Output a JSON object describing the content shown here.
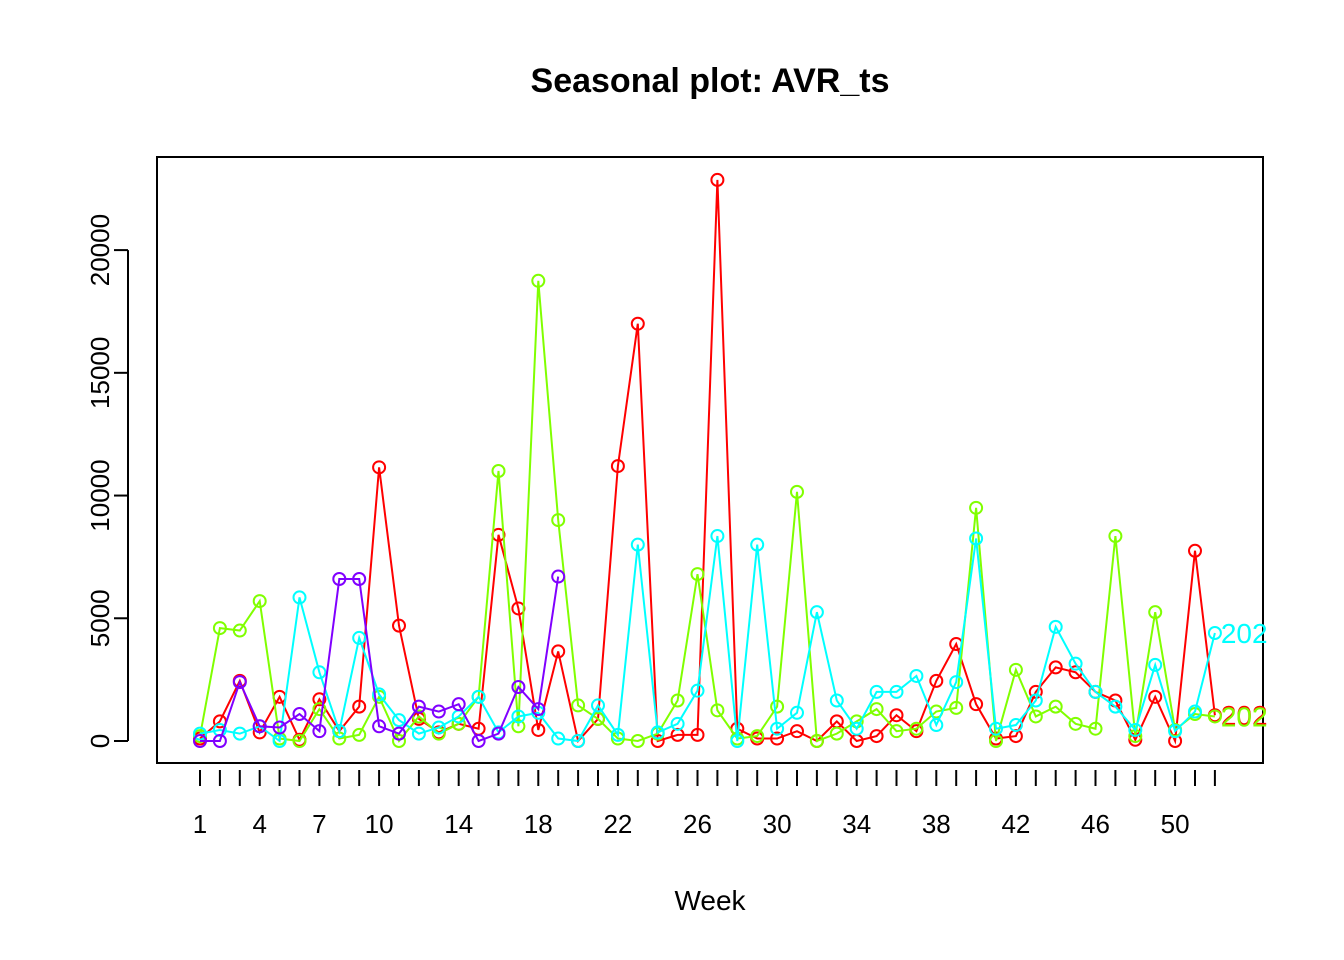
{
  "chart_data": {
    "type": "line",
    "title": "Seasonal plot: AVR_ts",
    "xlabel": "Week",
    "ylabel": "",
    "xlim": [
      1,
      52
    ],
    "ylim": [
      0,
      22860
    ],
    "x_tick_labels": [
      1,
      4,
      7,
      10,
      14,
      18,
      22,
      26,
      30,
      34,
      38,
      42,
      46,
      50
    ],
    "y_tick_labels": [
      0,
      5000,
      10000,
      15000,
      20000
    ],
    "grid": false,
    "series": [
      {
        "color": "#FF0000",
        "end_label": "202",
        "x": [
          1,
          2,
          3,
          4,
          5,
          6,
          7,
          8,
          9,
          10,
          11,
          12,
          13,
          14,
          15,
          16,
          17,
          18,
          19,
          20,
          21,
          22,
          23,
          24,
          25,
          26,
          27,
          28,
          29,
          30,
          31,
          32,
          33,
          34,
          35,
          36,
          37,
          38,
          39,
          40,
          41,
          42,
          43,
          44,
          45,
          46,
          47,
          48,
          49,
          50,
          51,
          52
        ],
        "values": [
          100,
          800,
          2450,
          350,
          1800,
          50,
          1700,
          400,
          1400,
          11150,
          4700,
          900,
          350,
          700,
          500,
          8400,
          5400,
          450,
          3650,
          0,
          900,
          11200,
          17000,
          0,
          250,
          250,
          22860,
          500,
          100,
          100,
          400,
          0,
          800,
          0,
          200,
          1050,
          400,
          2450,
          3950,
          1500,
          100,
          200,
          2000,
          3000,
          2800,
          2000,
          1650,
          50,
          1800,
          0,
          7750,
          1050
        ]
      },
      {
        "color": "#80FF00",
        "end_label": "202",
        "x": [
          1,
          2,
          3,
          4,
          5,
          6,
          7,
          8,
          9,
          10,
          11,
          12,
          13,
          14,
          15,
          16,
          17,
          18,
          19,
          20,
          21,
          22,
          23,
          24,
          25,
          26,
          27,
          28,
          29,
          30,
          31,
          32,
          33,
          34,
          35,
          36,
          37,
          38,
          39,
          40,
          41,
          42,
          43,
          44,
          45,
          46,
          47,
          48,
          49,
          50,
          51,
          52
        ],
        "values": [
          200,
          4600,
          4500,
          5700,
          100,
          0,
          1300,
          100,
          250,
          1800,
          0,
          1000,
          300,
          700,
          1800,
          11000,
          600,
          18750,
          9000,
          1450,
          900,
          100,
          0,
          300,
          1650,
          6800,
          1250,
          100,
          200,
          1400,
          10150,
          0,
          300,
          800,
          1300,
          400,
          500,
          1200,
          1350,
          9500,
          0,
          2900,
          1000,
          1400,
          700,
          500,
          8350,
          200,
          5250,
          450,
          1100,
          1000
        ]
      },
      {
        "color": "#00FFFF",
        "end_label": "202",
        "x": [
          1,
          2,
          3,
          4,
          5,
          6,
          7,
          8,
          9,
          10,
          11,
          12,
          13,
          14,
          15,
          16,
          17,
          18,
          19,
          20,
          21,
          22,
          23,
          24,
          25,
          26,
          27,
          28,
          29,
          30,
          31,
          32,
          33,
          34,
          35,
          36,
          37,
          38,
          39,
          40,
          41,
          42,
          43,
          44,
          45,
          46,
          47,
          48,
          49,
          50,
          51,
          52
        ],
        "values": [
          300,
          450,
          300,
          600,
          0,
          5850,
          2800,
          400,
          4200,
          1900,
          850,
          300,
          550,
          1000,
          1800,
          350,
          1000,
          1150,
          100,
          0,
          1450,
          250,
          8000,
          350,
          700,
          2050,
          8350,
          0,
          8000,
          500,
          1150,
          5250,
          1650,
          500,
          2000,
          2000,
          2650,
          650,
          2400,
          8250,
          500,
          650,
          1650,
          4650,
          3150,
          2000,
          1400,
          450,
          3100,
          400,
          1200,
          4400
        ]
      },
      {
        "color": "#8000FF",
        "end_label": "",
        "x": [
          1,
          2,
          3,
          4,
          5,
          6,
          7,
          8,
          9,
          10,
          11,
          12,
          13,
          14,
          15,
          16,
          17,
          18,
          19
        ],
        "values": [
          0,
          0,
          2400,
          600,
          550,
          1100,
          400,
          6600,
          6600,
          600,
          300,
          1400,
          1200,
          1500,
          0,
          300,
          2200,
          1300,
          6700
        ]
      }
    ]
  }
}
